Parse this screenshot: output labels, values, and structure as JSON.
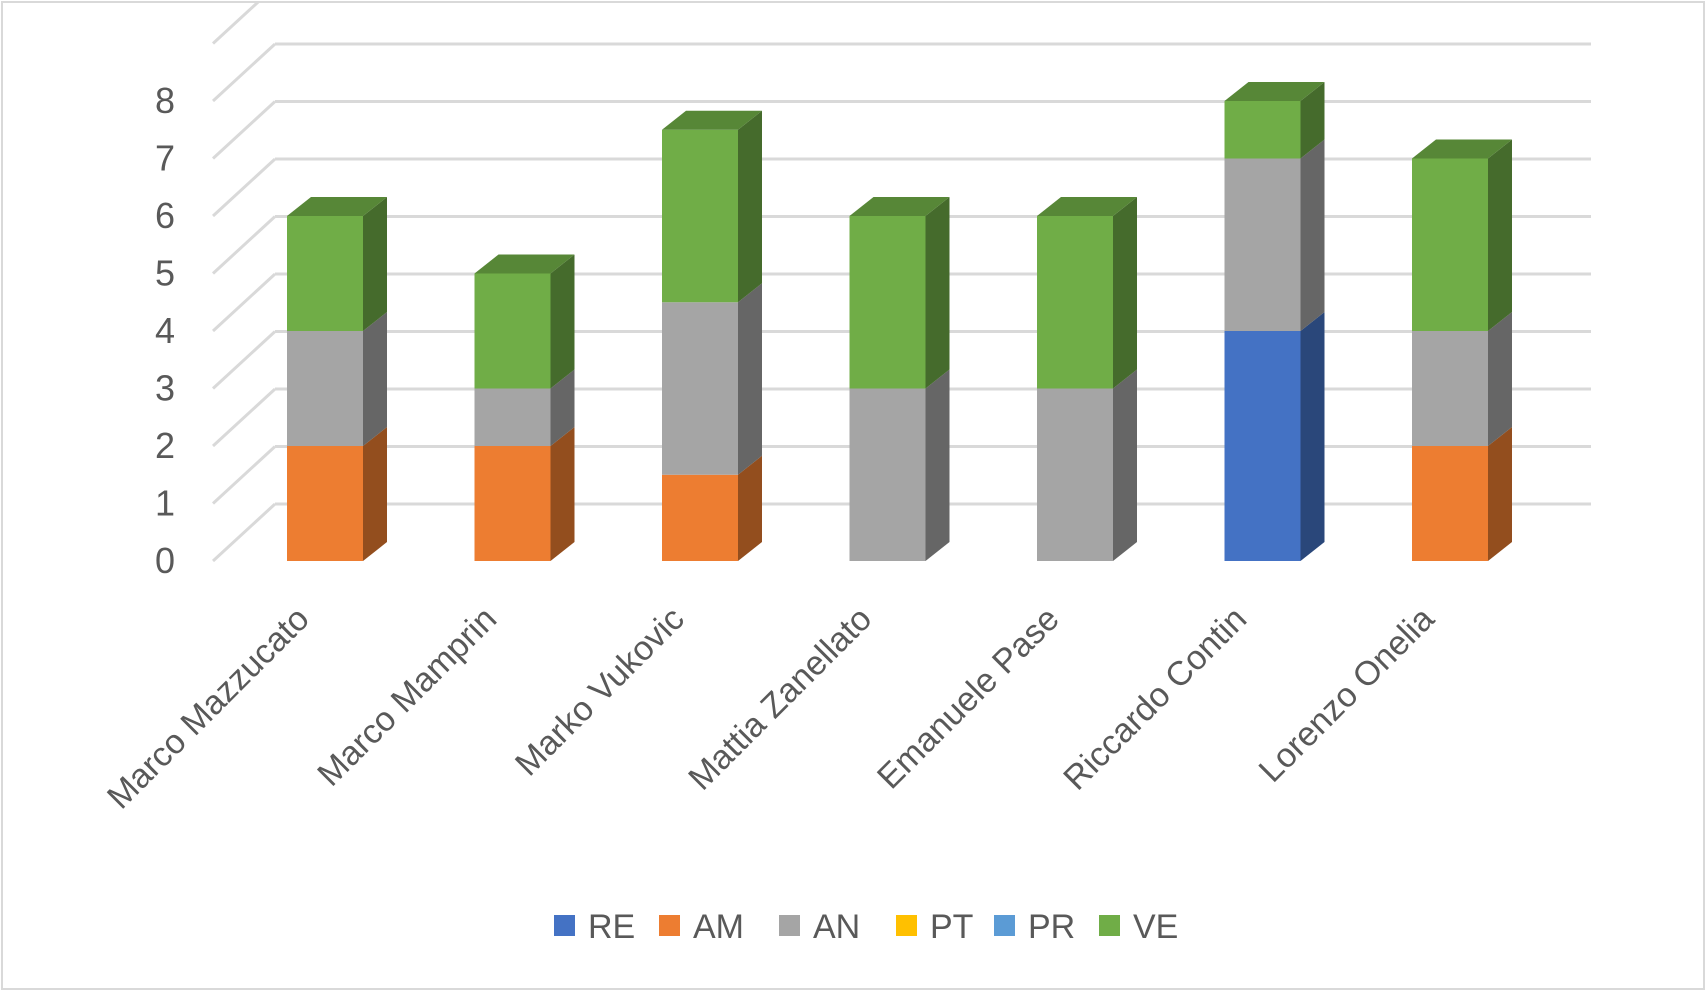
{
  "chart_data": {
    "type": "bar",
    "stacked": true,
    "three_d": true,
    "title": "",
    "xlabel": "",
    "ylabel": "",
    "ylim": [
      0,
      8
    ],
    "yticks": [
      "0",
      "1",
      "2",
      "3",
      "4",
      "5",
      "6",
      "7",
      "8"
    ],
    "grid": true,
    "legend_position": "bottom",
    "categories": [
      "Marco Mazzucato",
      "Marco Mamprin",
      "Marko Vukovic",
      "Mattia Zanellato",
      "Emanuele Pase",
      "Riccardo Contin",
      "Lorenzo Onelia"
    ],
    "series": [
      {
        "name": "RE",
        "color": "#4472c4",
        "values": [
          0,
          0,
          0,
          0,
          0,
          4,
          0
        ]
      },
      {
        "name": "AM",
        "color": "#ed7d31",
        "values": [
          2,
          2,
          1.5,
          0,
          0,
          0,
          2
        ]
      },
      {
        "name": "AN",
        "color": "#a5a5a5",
        "values": [
          2,
          1,
          3,
          3,
          3,
          3,
          2
        ]
      },
      {
        "name": "PT",
        "color": "#ffc000",
        "values": [
          0,
          0,
          0,
          0,
          0,
          0,
          0
        ]
      },
      {
        "name": "PR",
        "color": "#5b9bd5",
        "values": [
          0,
          0,
          0,
          0,
          0,
          0,
          0
        ]
      },
      {
        "name": "VE",
        "color": "#70ad47",
        "values": [
          2,
          2,
          3,
          3,
          3,
          1,
          3
        ]
      }
    ]
  }
}
